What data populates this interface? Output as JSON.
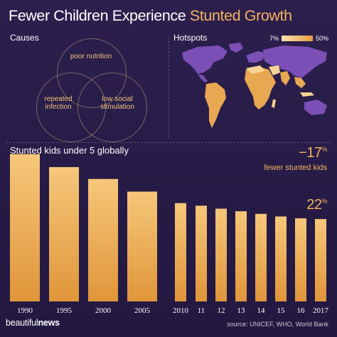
{
  "title": {
    "part1": "Fewer Children Experience",
    "part2": "Stunted Growth"
  },
  "causes": {
    "label": "Causes",
    "items": [
      "poor nutrition",
      "repeated infection",
      "low social stimulation"
    ]
  },
  "hotspots": {
    "label": "Hotspots",
    "legend_min": "7%",
    "legend_max": "50%",
    "colors": {
      "land": "#7b4fb5",
      "low": "#fbe3b2",
      "high": "#e49b3e"
    }
  },
  "bars_title": "Stunted kids under 5 globally",
  "annotation": {
    "change": "−17",
    "change_unit": "%",
    "change_label": "fewer stunted kids",
    "latest": "22",
    "latest_unit": "%"
  },
  "footer": {
    "logo_light": "beautiful",
    "logo_bold": "news",
    "source": "source: UNICEF, WHO, World Bank"
  },
  "colors": {
    "bar_top": "#f6c77a",
    "bar_bottom": "#e0953a",
    "accent": "#f3b25e",
    "background": "#2a1d4b"
  },
  "chart_data": {
    "type": "bar",
    "title": "Stunted kids under 5 globally",
    "categories": [
      "1990",
      "1995",
      "2000",
      "2005",
      "2010",
      "11",
      "12",
      "13",
      "14",
      "15",
      "16",
      "2017"
    ],
    "values": [
      39.7,
      36.2,
      33.0,
      29.6,
      26.5,
      25.8,
      25.0,
      24.3,
      23.6,
      22.9,
      22.4,
      22.2
    ],
    "unit": "%",
    "ylim": [
      0,
      42
    ],
    "grid": false
  }
}
